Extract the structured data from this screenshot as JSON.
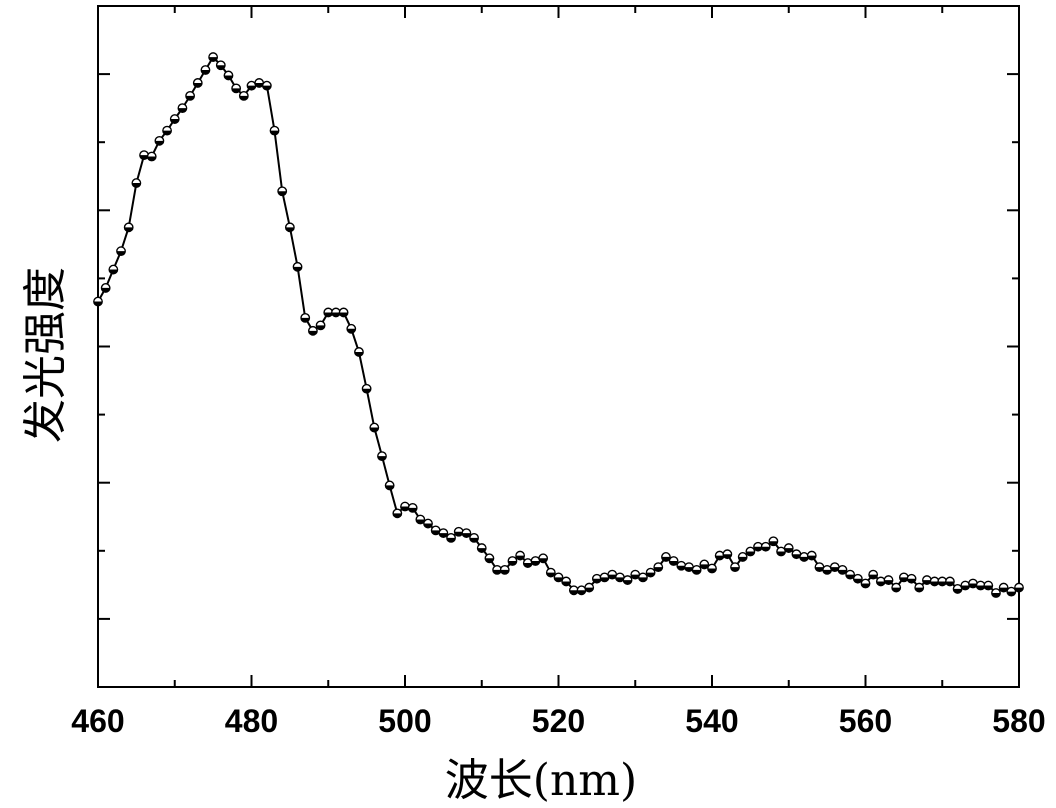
{
  "chart_data": {
    "type": "line",
    "xlabel": "波长(nm)",
    "ylabel": "发光强度",
    "xlim": [
      460,
      580
    ],
    "ylim": [
      0,
      10
    ],
    "x_ticks": [
      460,
      480,
      500,
      520,
      540,
      560,
      580
    ],
    "x_tick_labels": [
      "460",
      "480",
      "500",
      "520",
      "540",
      "560",
      "580"
    ],
    "y_tick_labels_shown": false,
    "grid": false,
    "marker": "half-filled circle",
    "line_color": "#000000",
    "series": [
      {
        "x": [
          460,
          461,
          462,
          463,
          464,
          465,
          466,
          467,
          468,
          469,
          470,
          471,
          472,
          473,
          474,
          475,
          476,
          477,
          478,
          479,
          480,
          481,
          482,
          483,
          484,
          485,
          486,
          487,
          488,
          489,
          490,
          491,
          492,
          493,
          494,
          495,
          496,
          497,
          498,
          499,
          500,
          501,
          502,
          503,
          504,
          505,
          506,
          507,
          508,
          509,
          510,
          511,
          512,
          513,
          514,
          515,
          516,
          517,
          518,
          519,
          520,
          521,
          522,
          523,
          524,
          525,
          526,
          527,
          528,
          529,
          530,
          531,
          532,
          533,
          534,
          535,
          536,
          537,
          538,
          539,
          540,
          541,
          542,
          543,
          544,
          545,
          546,
          547,
          548,
          549,
          550,
          551,
          552,
          553,
          554,
          555,
          556,
          557,
          558,
          559,
          560,
          561,
          562,
          563,
          564,
          565,
          566,
          567,
          568,
          569,
          570,
          571,
          572,
          573,
          574,
          575,
          576,
          577,
          578,
          579,
          580
        ],
        "y": [
          5.66,
          5.86,
          6.13,
          6.4,
          6.75,
          7.4,
          7.81,
          7.79,
          8.02,
          8.17,
          8.34,
          8.5,
          8.68,
          8.87,
          9.06,
          9.25,
          9.13,
          8.98,
          8.79,
          8.68,
          8.83,
          8.87,
          8.83,
          8.17,
          7.28,
          6.75,
          6.17,
          5.42,
          5.23,
          5.31,
          5.5,
          5.5,
          5.5,
          5.26,
          4.92,
          4.38,
          3.81,
          3.39,
          2.96,
          2.55,
          2.65,
          2.63,
          2.46,
          2.4,
          2.3,
          2.26,
          2.19,
          2.28,
          2.26,
          2.19,
          2.04,
          1.89,
          1.72,
          1.72,
          1.85,
          1.93,
          1.82,
          1.85,
          1.89,
          1.68,
          1.61,
          1.55,
          1.42,
          1.42,
          1.46,
          1.59,
          1.61,
          1.65,
          1.61,
          1.57,
          1.65,
          1.61,
          1.68,
          1.76,
          1.91,
          1.85,
          1.78,
          1.76,
          1.72,
          1.8,
          1.74,
          1.93,
          1.95,
          1.76,
          1.91,
          1.99,
          2.06,
          2.06,
          2.14,
          1.99,
          2.04,
          1.95,
          1.91,
          1.93,
          1.76,
          1.72,
          1.76,
          1.72,
          1.65,
          1.59,
          1.52,
          1.65,
          1.55,
          1.57,
          1.46,
          1.61,
          1.59,
          1.46,
          1.57,
          1.55,
          1.55,
          1.55,
          1.44,
          1.49,
          1.52,
          1.49,
          1.49,
          1.38,
          1.46,
          1.4,
          1.46
        ]
      }
    ]
  }
}
